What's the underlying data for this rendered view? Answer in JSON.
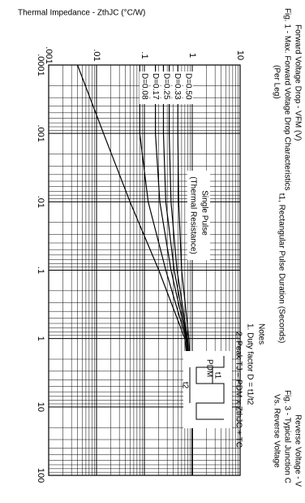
{
  "chart_data": {
    "type": "line",
    "y_label": "Thermal Impedance - ZthJC (°C/W)",
    "x_label": "t1, Rectangular Pulse Duration (Seconds)",
    "x": [
      0.0001,
      0.001,
      0.01,
      0.1,
      1,
      10,
      100
    ],
    "series": [
      {
        "name": "D=0.50",
        "color": "#000000",
        "values": [
          0.5,
          0.5,
          0.52,
          0.6,
          0.85,
          1.0,
          1.0
        ]
      },
      {
        "name": "D=0.33",
        "color": "#000000",
        "values": [
          0.33,
          0.33,
          0.36,
          0.48,
          0.8,
          1.0,
          1.0
        ]
      },
      {
        "name": "D=0.25",
        "color": "#000000",
        "values": [
          0.25,
          0.25,
          0.28,
          0.42,
          0.78,
          1.0,
          1.0
        ]
      },
      {
        "name": "D=0.17",
        "color": "#000000",
        "values": [
          0.17,
          0.17,
          0.21,
          0.36,
          0.76,
          1.0,
          1.0
        ]
      },
      {
        "name": "D=0.08",
        "color": "#000000",
        "values": [
          0.08,
          0.08,
          0.12,
          0.28,
          0.74,
          1.0,
          1.0
        ]
      },
      {
        "name": "Single Pulse",
        "color": "#000000",
        "values": [
          0.004,
          0.014,
          0.05,
          0.2,
          0.7,
          1.0,
          1.0
        ]
      }
    ],
    "single_pulse_note": "(Thermal Resistance)",
    "xlim": [
      0.0001,
      100
    ],
    "xticks": [
      {
        "value": 0.0001,
        "label": ".0001"
      },
      {
        "value": 0.001,
        "label": ".001"
      },
      {
        "value": 0.01,
        "label": ".01"
      },
      {
        "value": 0.1,
        "label": ".1"
      },
      1,
      10,
      100
    ],
    "ylim": [
      0.001,
      10
    ],
    "yticks": [
      {
        "value": 0.001,
        "label": ".001"
      },
      {
        "value": 0.01,
        "label": ".01"
      },
      {
        "value": 0.1,
        "label": ".1"
      },
      1,
      10
    ],
    "log_x": true,
    "log_y": true,
    "grid": true,
    "notes": [
      "Notes",
      "1. Duty factor D = t1/t2",
      "2. Peak TJ = PDM x ZthJC + TC"
    ],
    "waveform_labels": [
      "PDM",
      "t1",
      "t2"
    ]
  },
  "fragments": [
    "Forward Voltage Drop - VFM (V)",
    "Fig. 1 - Max. Forward Voltage Drop Characteristics",
    "(Per Leg)",
    "Reverse Voltage - V",
    "Fig. 3 - Typical Junction C",
    "Vs. Reverse Voltage"
  ]
}
